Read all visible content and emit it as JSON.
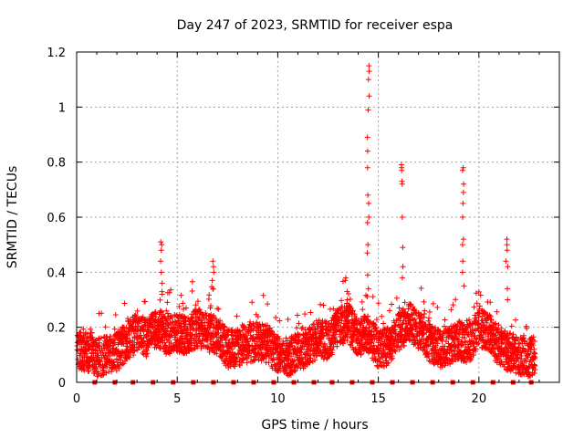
{
  "chart_data": {
    "type": "scatter",
    "title": "Day 247 of 2023, SRMTID for receiver espa",
    "xlabel": "GPS time / hours",
    "ylabel": "SRMTID / TECUs",
    "xlim": [
      0,
      24
    ],
    "ylim": [
      0,
      1.2
    ],
    "x_ticks": [
      0,
      5,
      10,
      15,
      20
    ],
    "y_ticks": [
      0,
      0.2,
      0.4,
      0.6,
      0.8,
      1,
      1.2
    ],
    "x_tick_labels": [
      "0",
      "5",
      "10",
      "15",
      "20"
    ],
    "y_tick_labels": [
      "0",
      "0.2",
      "0.4",
      "0.6",
      "0.8",
      "1",
      "1.2"
    ],
    "grid": true,
    "marker": "+",
    "color": "#ff0000",
    "series": [
      {
        "name": "SRMTID",
        "profile": [
          [
            0.0,
            0.12
          ],
          [
            0.5,
            0.11
          ],
          [
            1.0,
            0.09
          ],
          [
            1.5,
            0.1
          ],
          [
            2.0,
            0.11
          ],
          [
            2.5,
            0.15
          ],
          [
            3.0,
            0.18
          ],
          [
            3.5,
            0.16
          ],
          [
            4.0,
            0.2
          ],
          [
            4.5,
            0.17
          ],
          [
            5.0,
            0.18
          ],
          [
            5.5,
            0.17
          ],
          [
            6.0,
            0.2
          ],
          [
            6.5,
            0.18
          ],
          [
            7.0,
            0.17
          ],
          [
            7.5,
            0.12
          ],
          [
            8.0,
            0.13
          ],
          [
            8.5,
            0.14
          ],
          [
            9.0,
            0.15
          ],
          [
            9.5,
            0.14
          ],
          [
            10.0,
            0.1
          ],
          [
            10.5,
            0.09
          ],
          [
            11.0,
            0.11
          ],
          [
            11.5,
            0.13
          ],
          [
            12.0,
            0.16
          ],
          [
            12.5,
            0.15
          ],
          [
            13.0,
            0.2
          ],
          [
            13.5,
            0.22
          ],
          [
            14.0,
            0.16
          ],
          [
            14.5,
            0.18
          ],
          [
            15.0,
            0.12
          ],
          [
            15.5,
            0.13
          ],
          [
            16.0,
            0.18
          ],
          [
            16.5,
            0.22
          ],
          [
            17.0,
            0.19
          ],
          [
            17.5,
            0.15
          ],
          [
            18.0,
            0.12
          ],
          [
            18.5,
            0.13
          ],
          [
            19.0,
            0.15
          ],
          [
            19.5,
            0.14
          ],
          [
            20.0,
            0.2
          ],
          [
            20.5,
            0.18
          ],
          [
            21.0,
            0.13
          ],
          [
            21.5,
            0.11
          ],
          [
            22.0,
            0.1
          ],
          [
            22.5,
            0.09
          ],
          [
            22.8,
            0.1
          ]
        ],
        "peaks": [
          {
            "x": 4.2,
            "values": [
              0.51,
              0.5,
              0.48,
              0.44,
              0.4,
              0.36,
              0.32
            ]
          },
          {
            "x": 6.8,
            "values": [
              0.44,
              0.42,
              0.4,
              0.37,
              0.34
            ]
          },
          {
            "x": 13.4,
            "values": [
              0.38,
              0.37,
              0.33,
              0.3
            ]
          },
          {
            "x": 14.5,
            "values": [
              1.15,
              1.13,
              1.1,
              1.04,
              0.99,
              0.89,
              0.84,
              0.78,
              0.68,
              0.65,
              0.6,
              0.58,
              0.5,
              0.47,
              0.39,
              0.34
            ]
          },
          {
            "x": 16.2,
            "values": [
              0.79,
              0.78,
              0.77,
              0.73,
              0.72,
              0.6,
              0.49,
              0.42,
              0.38
            ]
          },
          {
            "x": 19.2,
            "values": [
              0.78,
              0.77,
              0.72,
              0.69,
              0.65,
              0.6,
              0.52,
              0.5,
              0.44,
              0.4,
              0.35
            ]
          },
          {
            "x": 21.4,
            "values": [
              0.52,
              0.5,
              0.48,
              0.44,
              0.42,
              0.34,
              0.3
            ]
          }
        ]
      }
    ],
    "baseline_markers": {
      "y": 0,
      "x": [
        0.9,
        1.9,
        2.8,
        3.8,
        4.8,
        5.8,
        6.8,
        7.8,
        8.8,
        9.8,
        10.8,
        11.8,
        12.7,
        13.7,
        14.7,
        15.7,
        16.7,
        17.7,
        18.7,
        19.7,
        20.7,
        21.7,
        22.6
      ]
    }
  }
}
